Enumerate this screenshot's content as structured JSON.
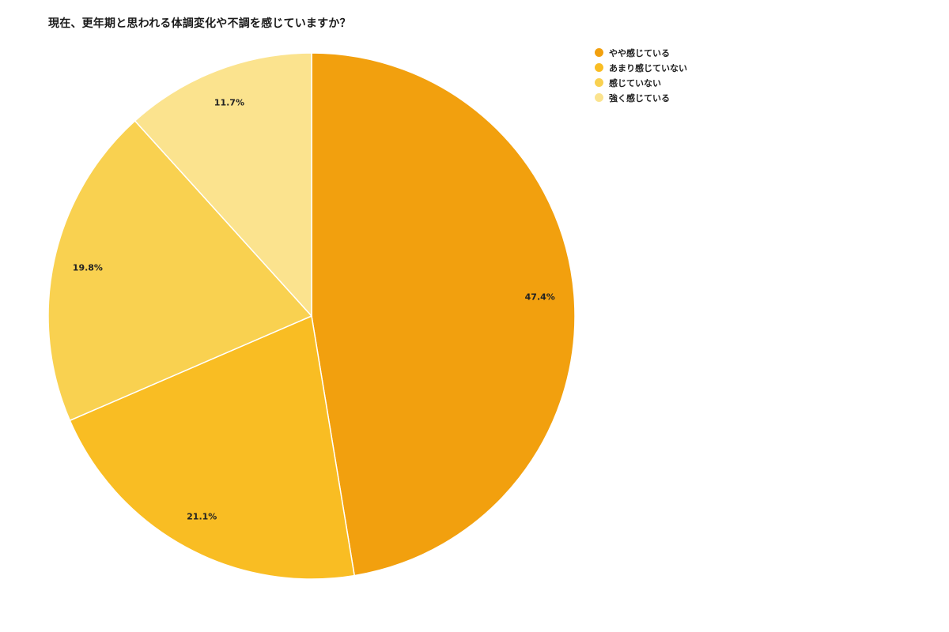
{
  "chart_data": {
    "type": "pie",
    "title": "現在、更年期と思われる体調変化や不調を感じていますか？",
    "categories": [
      "やや感じている",
      "あまり感じていない",
      "感じていない",
      "強く感じている"
    ],
    "values": [
      47.4,
      21.1,
      19.8,
      11.7
    ],
    "labels": [
      "47.4%",
      "21.1%",
      "19.8%",
      "11.7%"
    ],
    "colors": [
      "#F2A00E",
      "#F9BD23",
      "#F9D150",
      "#FBE38E"
    ],
    "legend_position": "right-top",
    "start_angle": "12 o'clock, clockwise"
  },
  "legend": {
    "items": [
      {
        "label": "やや感じている",
        "color": "#F2A00E"
      },
      {
        "label": "あまり感じていない",
        "color": "#F9BD23"
      },
      {
        "label": "感じていない",
        "color": "#F9D150"
      },
      {
        "label": "強く感じている",
        "color": "#FBE38E"
      }
    ]
  }
}
